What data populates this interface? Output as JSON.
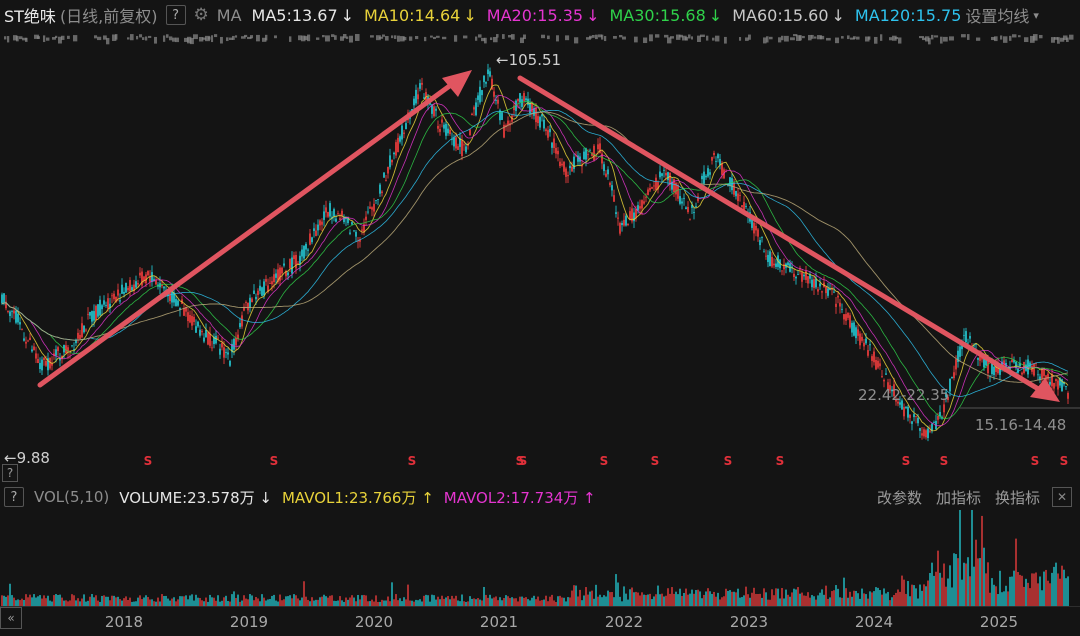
{
  "header": {
    "stock_name": "ST绝味",
    "stock_sub": "(日线,前复权)",
    "help": "?",
    "ma_label": "MA",
    "ma_items": [
      {
        "label": "MA5:13.67",
        "arrow": "↓",
        "color": "#e6e6e6"
      },
      {
        "label": "MA10:14.64",
        "arrow": "↓",
        "color": "#e8d23a"
      },
      {
        "label": "MA20:15.35",
        "arrow": "↓",
        "color": "#e535d0"
      },
      {
        "label": "MA30:15.68",
        "arrow": "↓",
        "color": "#2fd24a"
      },
      {
        "label": "MA60:15.60",
        "arrow": "↓",
        "color": "#c8c8c8"
      },
      {
        "label": "MA120:15.75",
        "arrow": "",
        "color": "#2ec3ee"
      }
    ],
    "ma_settings": "设置均线",
    "dropdown_icon": "▾"
  },
  "price_labels": {
    "high": "←105.51",
    "low": "←9.88",
    "range1": "22.42-22.35",
    "range2": "15.16-14.48"
  },
  "side_help": "?",
  "volume_bar": {
    "help": "?",
    "name": "VOL(5,10)",
    "items": [
      {
        "label": "VOLUME:23.578万",
        "arrow": "↓",
        "color": "#e6e6e6"
      },
      {
        "label": "MAVOL1:23.766万",
        "arrow": "↑",
        "color": "#e8d23a"
      },
      {
        "label": "MAVOL2:17.734万",
        "arrow": "↑",
        "color": "#e535d0"
      }
    ],
    "buttons": [
      "改参数",
      "加指标",
      "换指标"
    ],
    "close": "✕"
  },
  "collapse_icon": "«",
  "chart_data": {
    "type": "candlestick",
    "x_years": [
      "2018",
      "2019",
      "2020",
      "2021",
      "2022",
      "2023",
      "2024",
      "2025"
    ],
    "price_high": 105.51,
    "price_low": 9.88,
    "annotations": [
      "←105.51",
      "←9.88",
      "22.42-22.35",
      "15.16-14.48"
    ],
    "dividend_marks": [
      "S",
      "S",
      "S",
      "S",
      "S",
      "S",
      "S",
      "S",
      "S",
      "S",
      "S",
      "S",
      "S",
      "S"
    ],
    "colors": {
      "up": "#ff4040",
      "down": "#25d5e0",
      "arrow": "#e05560"
    }
  }
}
